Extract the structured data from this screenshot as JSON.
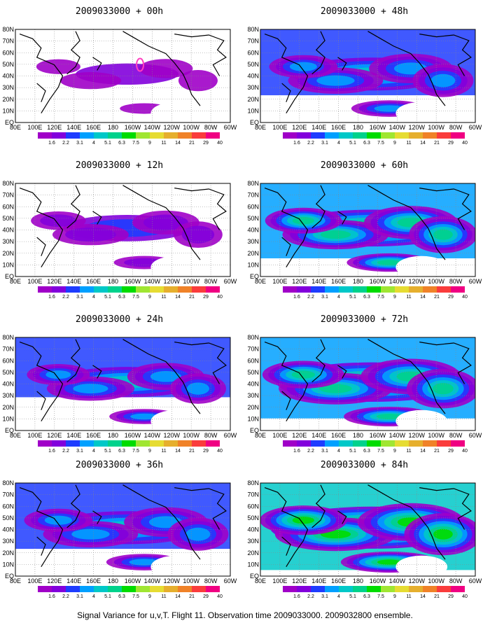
{
  "figure": {
    "caption": "Signal Variance for u,v,T. Flight 11. Observation time 2009033000. 2009032800 ensemble."
  },
  "panels": [
    {
      "title": "2009033000 + 00h",
      "level": 0.1
    },
    {
      "title": "2009033000 + 48h",
      "level": 0.55
    },
    {
      "title": "2009033000 + 12h",
      "level": 0.3
    },
    {
      "title": "2009033000 + 60h",
      "level": 0.7
    },
    {
      "title": "2009033000 + 24h",
      "level": 0.45
    },
    {
      "title": "2009033000 + 72h",
      "level": 0.8
    },
    {
      "title": "2009033000 + 36h",
      "level": 0.55
    },
    {
      "title": "2009033000 + 84h",
      "level": 0.9
    }
  ],
  "lon_labels": [
    "80E",
    "100E",
    "120E",
    "140E",
    "160E",
    "180",
    "160W",
    "140W",
    "120W",
    "100W",
    "80W",
    "60W"
  ],
  "lat_labels": [
    "80N",
    "70N",
    "60N",
    "50N",
    "40N",
    "30N",
    "20N",
    "10N",
    "EQ"
  ],
  "colorbar": {
    "labels": [
      "1.6",
      "2.2",
      "3.1",
      "4",
      "5.1",
      "6.3",
      "7.5",
      "9",
      "11",
      "14",
      "21",
      "29",
      "40"
    ],
    "colors": [
      "#a000c8",
      "#8200dc",
      "#1e3cff",
      "#00a0ff",
      "#00c8c8",
      "#00d28c",
      "#00dc00",
      "#a0e632",
      "#e6dc32",
      "#e6af2d",
      "#f08228",
      "#fa3c3c",
      "#f00082"
    ]
  },
  "colors": {
    "coast": "#000000",
    "grid": "#888888",
    "marker": "#ff3fbf"
  }
}
